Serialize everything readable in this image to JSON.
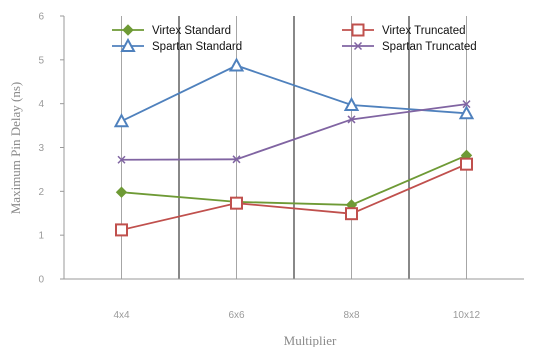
{
  "chart_data": {
    "type": "line",
    "xlabel": "Multiplier",
    "ylabel": "Maximum Pin Delay (ns)",
    "categories": [
      "4x4",
      "6x6",
      "8x8",
      "10x12"
    ],
    "ylim": [
      0,
      6
    ],
    "yticks": [
      0,
      1,
      2,
      3,
      4,
      5,
      6
    ],
    "grid": "vertical lines at categories (solid) and between categories (dark)",
    "legend_position": "top",
    "series": [
      {
        "name": "Virtex Standard",
        "values": [
          1.98,
          1.76,
          1.69,
          2.82
        ],
        "color": "#6e9a35",
        "marker": "diamond"
      },
      {
        "name": "Virtex Truncated",
        "values": [
          1.12,
          1.73,
          1.49,
          2.62
        ],
        "color": "#c0504d",
        "marker": "square"
      },
      {
        "name": "Spartan Standard",
        "values": [
          3.6,
          4.87,
          3.97,
          3.78
        ],
        "color": "#4f81bd",
        "marker": "triangle"
      },
      {
        "name": "Spartan Truncated",
        "values": [
          2.72,
          2.73,
          3.64,
          3.99
        ],
        "color": "#8064a2",
        "marker": "x"
      }
    ]
  }
}
